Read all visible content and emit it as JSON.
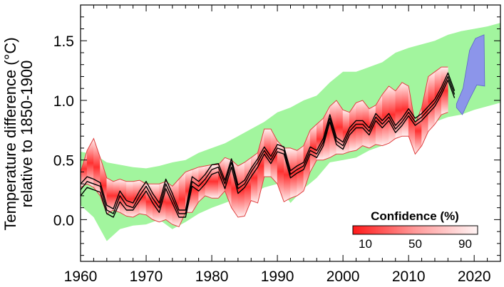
{
  "chart_data": {
    "type": "area",
    "xlim": [
      1960,
      2024
    ],
    "ylim": [
      -0.35,
      1.8
    ],
    "x_ticks": [
      1960,
      1970,
      1980,
      1990,
      2000,
      2010,
      2020
    ],
    "y_ticks": [
      0.0,
      0.5,
      1.0,
      1.5
    ],
    "x_tick_labels": [
      "1960",
      "1970",
      "1980",
      "1990",
      "2000",
      "2010",
      "2020"
    ],
    "y_tick_labels": [
      "0.0",
      "0.5",
      "1.0",
      "1.5"
    ],
    "ylabel_line1": "Temperature difference (°C)",
    "ylabel_line2": "relative to 1850-1900",
    "colorbar": {
      "title": "Confidence (%)",
      "tick_labels": [
        "10",
        "50",
        "90"
      ],
      "tick_values": [
        10,
        50,
        90
      ],
      "range": [
        0,
        100
      ]
    },
    "colors": {
      "envelope": "#a2f59e",
      "confidence": "#ff2b2b",
      "outline": "#e04040",
      "projection": "#8c95ea",
      "observed": "#000000"
    },
    "series": [
      {
        "x": [
          1960,
          1962,
          1964,
          1966,
          1968,
          1970,
          1972,
          1974,
          1976,
          1978,
          1980,
          1982,
          1984,
          1986,
          1988,
          1990,
          1992,
          1994,
          1996,
          1998,
          2000,
          2002,
          2004,
          2006,
          2008,
          2010,
          2012,
          2014,
          2016,
          2018,
          2020,
          2022,
          2024
        ],
        "lower": [
          0.12,
          0.02,
          -0.18,
          -0.08,
          -0.05,
          -0.04,
          0.0,
          -0.08,
          -0.02,
          0.05,
          0.1,
          0.14,
          0.18,
          0.22,
          0.27,
          0.3,
          0.14,
          0.26,
          0.35,
          0.48,
          0.5,
          0.52,
          0.58,
          0.62,
          0.68,
          0.75,
          0.78,
          0.82,
          0.86,
          0.88,
          0.92,
          0.95,
          0.98
        ],
        "upper": [
          0.57,
          0.55,
          0.48,
          0.46,
          0.44,
          0.43,
          0.45,
          0.48,
          0.5,
          0.56,
          0.6,
          0.64,
          0.7,
          0.76,
          0.82,
          0.9,
          0.94,
          1.0,
          1.04,
          1.15,
          1.24,
          1.24,
          1.28,
          1.32,
          1.4,
          1.44,
          1.47,
          1.5,
          1.55,
          1.58,
          1.6,
          1.62,
          1.65
        ]
      },
      {
        "name": "plume",
        "x": [
          1960,
          1961,
          1962,
          1963,
          1964,
          1965,
          1966,
          1967,
          1968,
          1969,
          1970,
          1971,
          1972,
          1973,
          1974,
          1975,
          1976,
          1977,
          1978,
          1979,
          1980,
          1981,
          1982,
          1983,
          1984,
          1985,
          1986,
          1987,
          1988,
          1989,
          1990,
          1991,
          1992,
          1993,
          1994,
          1995,
          1996,
          1997,
          1998,
          1999,
          2000,
          2001,
          2002,
          2003,
          2004,
          2005,
          2006,
          2007,
          2008,
          2009,
          2010,
          2011,
          2012,
          2013,
          2014,
          2015,
          2016
        ],
        "low": [
          0.27,
          0.3,
          0.27,
          0.2,
          0.05,
          0.08,
          0.06,
          0.03,
          0.02,
          0.05,
          0.04,
          0.0,
          -0.02,
          0.0,
          -0.04,
          -0.06,
          0.06,
          0.06,
          0.15,
          0.2,
          0.18,
          0.18,
          0.24,
          0.1,
          0.02,
          0.03,
          0.16,
          0.14,
          0.36,
          0.36,
          0.3,
          0.15,
          0.18,
          0.2,
          0.24,
          0.4,
          0.5,
          0.5,
          0.52,
          0.55,
          0.55,
          0.57,
          0.58,
          0.62,
          0.6,
          0.63,
          0.62,
          0.64,
          0.68,
          0.7,
          0.7,
          0.55,
          0.62,
          0.74,
          0.8,
          0.88,
          0.9
        ],
        "high": [
          0.4,
          0.58,
          0.68,
          0.52,
          0.35,
          0.32,
          0.34,
          0.32,
          0.32,
          0.33,
          0.3,
          0.3,
          0.3,
          0.32,
          0.28,
          0.34,
          0.4,
          0.42,
          0.44,
          0.45,
          0.46,
          0.46,
          0.52,
          0.5,
          0.45,
          0.48,
          0.52,
          0.56,
          0.76,
          0.76,
          0.66,
          0.6,
          0.6,
          0.58,
          0.62,
          0.75,
          0.8,
          0.85,
          0.95,
          1.0,
          0.92,
          0.9,
          0.98,
          1.0,
          0.93,
          0.96,
          1.05,
          1.12,
          1.08,
          1.15,
          1.12,
          0.8,
          0.94,
          1.2,
          1.24,
          1.28,
          1.28
        ],
        "mid": [
          0.33,
          0.44,
          0.48,
          0.36,
          0.2,
          0.2,
          0.2,
          0.18,
          0.17,
          0.19,
          0.17,
          0.15,
          0.14,
          0.16,
          0.12,
          0.14,
          0.23,
          0.24,
          0.3,
          0.33,
          0.32,
          0.32,
          0.38,
          0.3,
          0.24,
          0.26,
          0.34,
          0.35,
          0.56,
          0.56,
          0.48,
          0.38,
          0.39,
          0.39,
          0.43,
          0.58,
          0.65,
          0.68,
          0.74,
          0.78,
          0.74,
          0.74,
          0.78,
          0.81,
          0.77,
          0.8,
          0.84,
          0.88,
          0.88,
          0.92,
          0.91,
          0.68,
          0.78,
          0.97,
          1.02,
          1.08,
          1.09
        ]
      },
      {
        "name": "blue",
        "x": [
          2017.3,
          2018.3,
          2019.3,
          2020.2,
          2021.5,
          2021.6,
          2020.4,
          2019.2,
          2018.2,
          2017.3
        ],
        "y": [
          0.97,
          1.1,
          1.42,
          1.52,
          1.55,
          1.12,
          1.13,
          1.0,
          0.88,
          0.94
        ]
      },
      {
        "name": "obs1",
        "x": [
          1960,
          1961,
          1962,
          1963,
          1964,
          1965,
          1966,
          1967,
          1968,
          1969,
          1970,
          1971,
          1972,
          1973,
          1974,
          1975,
          1976,
          1977,
          1978,
          1979,
          1980,
          1981,
          1982,
          1983,
          1984,
          1985,
          1986,
          1987,
          1988,
          1989,
          1990,
          1991,
          1992,
          1993,
          1994,
          1995,
          1996,
          1997,
          1998,
          1999,
          2000,
          2001,
          2002,
          2003,
          2004,
          2005,
          2006,
          2007,
          2008,
          2009,
          2010,
          2011,
          2012,
          2013,
          2014,
          2015,
          2016,
          2017
        ],
        "y": [
          0.25,
          0.32,
          0.3,
          0.28,
          0.08,
          0.05,
          0.2,
          0.12,
          0.1,
          0.2,
          0.28,
          0.18,
          0.1,
          0.3,
          0.18,
          0.05,
          0.05,
          0.32,
          0.28,
          0.34,
          0.42,
          0.44,
          0.3,
          0.48,
          0.26,
          0.3,
          0.4,
          0.48,
          0.58,
          0.5,
          0.6,
          0.58,
          0.38,
          0.42,
          0.45,
          0.58,
          0.55,
          0.65,
          0.85,
          0.66,
          0.62,
          0.74,
          0.8,
          0.8,
          0.74,
          0.86,
          0.8,
          0.86,
          0.76,
          0.82,
          0.9,
          0.82,
          0.86,
          0.92,
          0.98,
          1.08,
          1.2,
          1.05
        ]
      },
      {
        "name": "obs2",
        "x": [
          1960,
          1961,
          1962,
          1963,
          1964,
          1965,
          1966,
          1967,
          1968,
          1969,
          1970,
          1971,
          1972,
          1973,
          1974,
          1975,
          1976,
          1977,
          1978,
          1979,
          1980,
          1981,
          1982,
          1983,
          1984,
          1985,
          1986,
          1987,
          1988,
          1989,
          1990,
          1991,
          1992,
          1993,
          1994,
          1995,
          1996,
          1997,
          1998,
          1999,
          2000,
          2001,
          2002,
          2003,
          2004,
          2005,
          2006,
          2007,
          2008,
          2009,
          2010,
          2011,
          2012,
          2013,
          2014,
          2015,
          2016,
          2017
        ],
        "y": [
          0.2,
          0.27,
          0.25,
          0.23,
          0.05,
          0.02,
          0.15,
          0.08,
          0.08,
          0.16,
          0.24,
          0.14,
          0.06,
          0.26,
          0.14,
          0.02,
          0.02,
          0.28,
          0.24,
          0.3,
          0.38,
          0.4,
          0.26,
          0.44,
          0.22,
          0.27,
          0.36,
          0.44,
          0.55,
          0.47,
          0.57,
          0.55,
          0.35,
          0.39,
          0.42,
          0.55,
          0.52,
          0.62,
          0.82,
          0.63,
          0.59,
          0.71,
          0.77,
          0.77,
          0.71,
          0.83,
          0.77,
          0.83,
          0.73,
          0.79,
          0.87,
          0.79,
          0.83,
          0.89,
          0.95,
          1.05,
          1.17,
          1.02
        ]
      },
      {
        "name": "obs3",
        "x": [
          1960,
          1961,
          1962,
          1963,
          1964,
          1965,
          1966,
          1967,
          1968,
          1969,
          1970,
          1971,
          1972,
          1973,
          1974,
          1975,
          1976,
          1977,
          1978,
          1979,
          1980,
          1981,
          1982,
          1983,
          1984,
          1985,
          1986,
          1987,
          1988,
          1989,
          1990,
          1991,
          1992,
          1993,
          1994,
          1995,
          1996,
          1997,
          1998,
          1999,
          2000,
          2001,
          2002,
          2003,
          2004,
          2005,
          2006,
          2007,
          2008,
          2009,
          2010,
          2011,
          2012,
          2013,
          2014,
          2015,
          2016,
          2017
        ],
        "y": [
          0.3,
          0.36,
          0.34,
          0.31,
          0.12,
          0.09,
          0.24,
          0.16,
          0.14,
          0.24,
          0.32,
          0.22,
          0.14,
          0.34,
          0.22,
          0.08,
          0.08,
          0.36,
          0.32,
          0.38,
          0.46,
          0.47,
          0.33,
          0.51,
          0.29,
          0.33,
          0.43,
          0.51,
          0.61,
          0.53,
          0.63,
          0.61,
          0.41,
          0.45,
          0.48,
          0.61,
          0.58,
          0.68,
          0.88,
          0.69,
          0.65,
          0.77,
          0.83,
          0.83,
          0.77,
          0.89,
          0.83,
          0.89,
          0.79,
          0.85,
          0.93,
          0.85,
          0.89,
          0.95,
          1.01,
          1.11,
          1.23,
          1.08
        ]
      }
    ]
  }
}
